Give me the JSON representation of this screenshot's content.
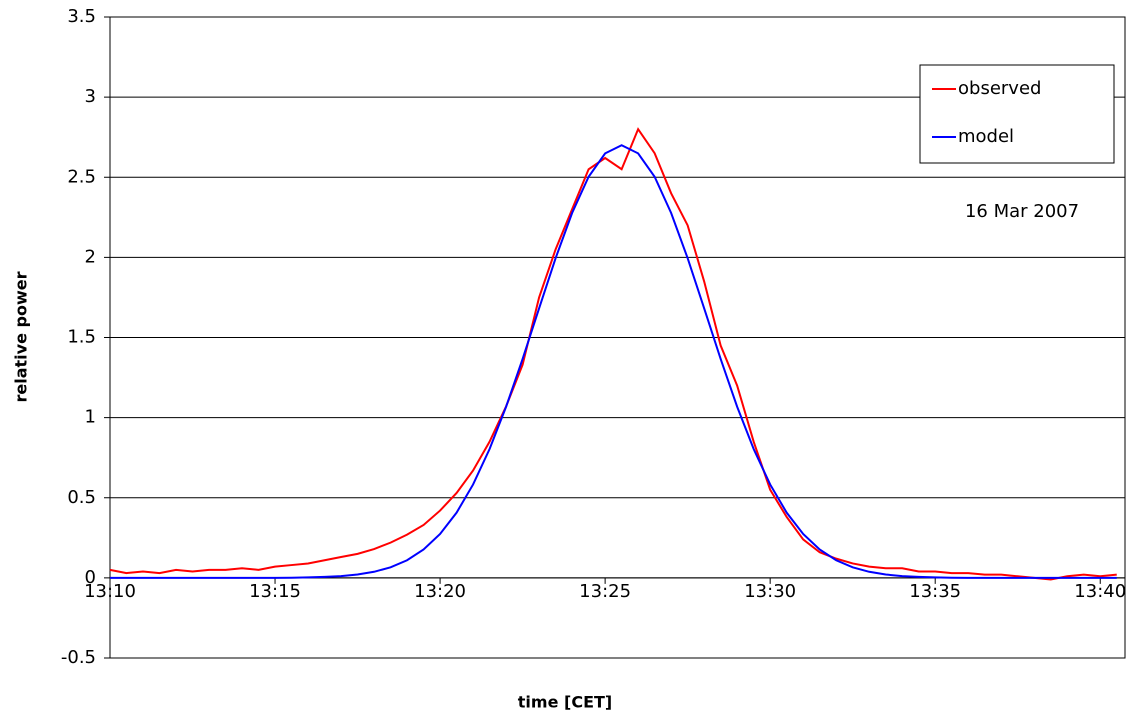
{
  "chart_data": {
    "type": "line",
    "x_label": "time [CET]",
    "y_label": "relative power",
    "annotation": "16 Mar 2007",
    "legend": "upper right",
    "grid": true,
    "x": [
      790,
      790.5,
      791,
      791.5,
      792,
      792.5,
      793,
      793.5,
      794,
      794.5,
      795,
      795.5,
      796,
      796.5,
      797,
      797.5,
      798,
      798.5,
      799,
      799.5,
      800,
      800.5,
      801,
      801.5,
      802,
      802.5,
      803,
      803.5,
      804,
      804.5,
      805,
      805.5,
      806,
      806.5,
      807,
      807.5,
      808,
      808.5,
      809,
      809.5,
      810,
      810.5,
      811,
      811.5,
      812,
      812.5,
      813,
      813.5,
      814,
      814.5,
      815,
      815.5,
      816,
      816.5,
      817,
      817.5,
      818,
      818.5,
      819,
      819.5,
      820,
      820.5
    ],
    "series": [
      {
        "name": "observed",
        "color": "#ff0000",
        "values": [
          0.05,
          0.03,
          0.04,
          0.03,
          0.05,
          0.04,
          0.05,
          0.05,
          0.06,
          0.05,
          0.07,
          0.08,
          0.09,
          0.11,
          0.13,
          0.15,
          0.18,
          0.22,
          0.27,
          0.33,
          0.42,
          0.53,
          0.67,
          0.85,
          1.07,
          1.33,
          1.75,
          2.05,
          2.3,
          2.55,
          2.62,
          2.55,
          2.8,
          2.65,
          2.4,
          2.2,
          1.85,
          1.45,
          1.2,
          0.85,
          0.55,
          0.38,
          0.24,
          0.16,
          0.12,
          0.09,
          0.07,
          0.06,
          0.06,
          0.04,
          0.04,
          0.03,
          0.03,
          0.02,
          0.02,
          0.01,
          0,
          -0.01,
          0.01,
          0.02,
          0.01,
          0.02
        ]
      },
      {
        "name": "model",
        "color": "#0000ff",
        "values": [
          0,
          0,
          0,
          0,
          0,
          0,
          0,
          0,
          0,
          0,
          0,
          0.001,
          0.003,
          0.006,
          0.011,
          0.021,
          0.038,
          0.066,
          0.11,
          0.177,
          0.274,
          0.407,
          0.583,
          0.804,
          1.068,
          1.366,
          1.682,
          1.995,
          2.277,
          2.503,
          2.649,
          2.7,
          2.649,
          2.503,
          2.277,
          1.995,
          1.682,
          1.366,
          1.068,
          0.804,
          0.583,
          0.407,
          0.274,
          0.177,
          0.11,
          0.066,
          0.038,
          0.021,
          0.011,
          0.006,
          0.003,
          0.001,
          0,
          0,
          0,
          0,
          0,
          0,
          0,
          0,
          0,
          0
        ]
      }
    ],
    "xlim": [
      790,
      820.75
    ],
    "xticks": [
      {
        "value": 790,
        "label": "13:10"
      },
      {
        "value": 795,
        "label": "13:15"
      },
      {
        "value": 800,
        "label": "13:20"
      },
      {
        "value": 805,
        "label": "13:25"
      },
      {
        "value": 810,
        "label": "13:30"
      },
      {
        "value": 815,
        "label": "13:35"
      },
      {
        "value": 820,
        "label": "13:40"
      }
    ],
    "ylim": [
      -0.5,
      3.5
    ],
    "yticks": [
      -0.5,
      0,
      0.5,
      1,
      1.5,
      2,
      2.5,
      3,
      3.5
    ]
  }
}
